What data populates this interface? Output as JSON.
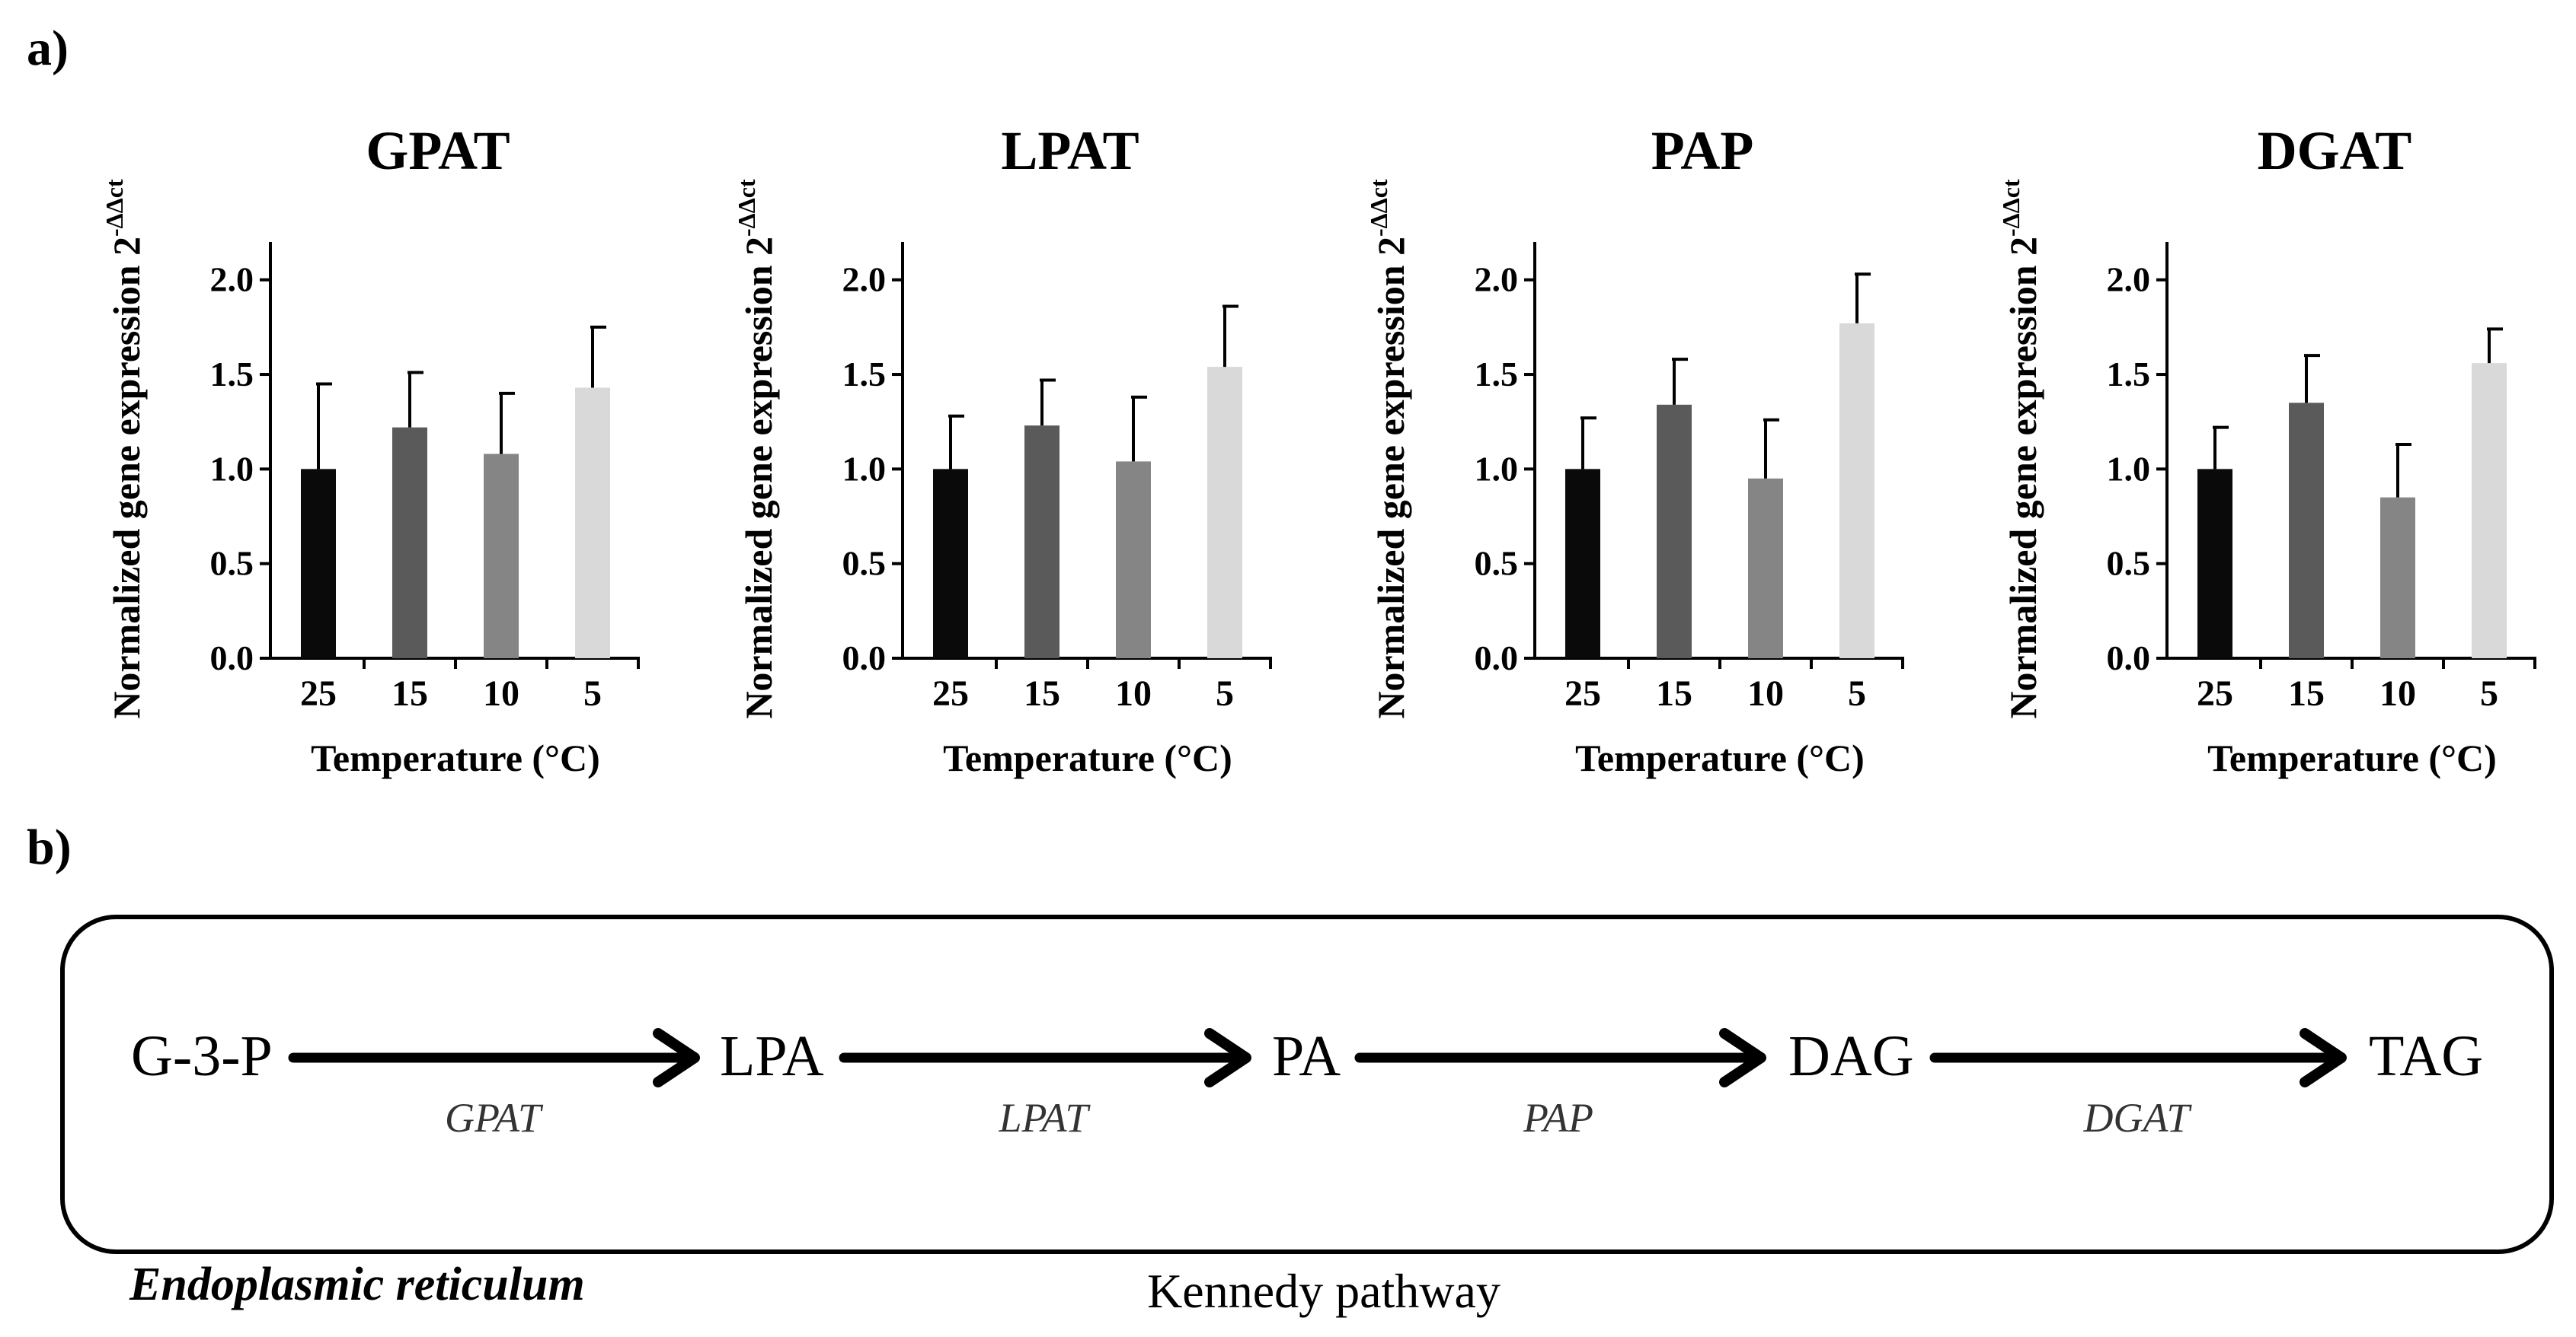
{
  "panel_labels": {
    "a": "a)",
    "b": "b)"
  },
  "y_axis_label": "Normalized gene expression 2",
  "y_axis_superscript": "-ΔΔct",
  "x_axis_label": "Temperature (°C)",
  "colors": {
    "bars": [
      "#0a0a0a",
      "#5a5a5a",
      "#858585",
      "#d9d9d9"
    ],
    "axis": "#000000",
    "error_bar": "#000000"
  },
  "chart_data": [
    {
      "type": "bar",
      "title": "GPAT",
      "xlabel": "Temperature (°C)",
      "ylabel": "Normalized gene expression 2-ΔΔct",
      "categories": [
        "25",
        "15",
        "10",
        "5"
      ],
      "values": [
        1.0,
        1.22,
        1.08,
        1.43
      ],
      "error_upper": [
        1.45,
        1.51,
        1.4,
        1.75
      ],
      "ylim": [
        0,
        2.2
      ],
      "yticks": [
        "0.0",
        "0.5",
        "1.0",
        "1.5",
        "2.0"
      ],
      "grid": false
    },
    {
      "type": "bar",
      "title": "LPAT",
      "xlabel": "Temperature (°C)",
      "ylabel": "Normalized gene expression 2-ΔΔct",
      "categories": [
        "25",
        "15",
        "10",
        "5"
      ],
      "values": [
        1.0,
        1.23,
        1.04,
        1.54
      ],
      "error_upper": [
        1.28,
        1.47,
        1.38,
        1.86
      ],
      "ylim": [
        0,
        2.2
      ],
      "yticks": [
        "0.0",
        "0.5",
        "1.0",
        "1.5",
        "2.0"
      ],
      "grid": false
    },
    {
      "type": "bar",
      "title": "PAP",
      "xlabel": "Temperature (°C)",
      "ylabel": "Normalized gene expression 2-ΔΔct",
      "categories": [
        "25",
        "15",
        "10",
        "5"
      ],
      "values": [
        1.0,
        1.34,
        0.95,
        1.77
      ],
      "error_upper": [
        1.27,
        1.58,
        1.26,
        2.03
      ],
      "ylim": [
        0,
        2.2
      ],
      "yticks": [
        "0.0",
        "0.5",
        "1.0",
        "1.5",
        "2.0"
      ],
      "grid": false
    },
    {
      "type": "bar",
      "title": "DGAT",
      "xlabel": "Temperature (°C)",
      "ylabel": "Normalized gene expression 2-ΔΔct",
      "categories": [
        "25",
        "15",
        "10",
        "5"
      ],
      "values": [
        1.0,
        1.35,
        0.85,
        1.56
      ],
      "error_upper": [
        1.22,
        1.6,
        1.13,
        1.74
      ],
      "ylim": [
        0,
        2.2
      ],
      "yticks": [
        "0.0",
        "0.5",
        "1.0",
        "1.5",
        "2.0"
      ],
      "grid": false
    }
  ],
  "pathway": {
    "metabolites": [
      "G-3-P",
      "LPA",
      "PA",
      "DAG",
      "TAG"
    ],
    "enzymes": [
      "GPAT",
      "LPAT",
      "PAP",
      "DGAT"
    ],
    "compartment_label": "Endoplasmic reticulum",
    "pathway_label": "Kennedy pathway"
  }
}
